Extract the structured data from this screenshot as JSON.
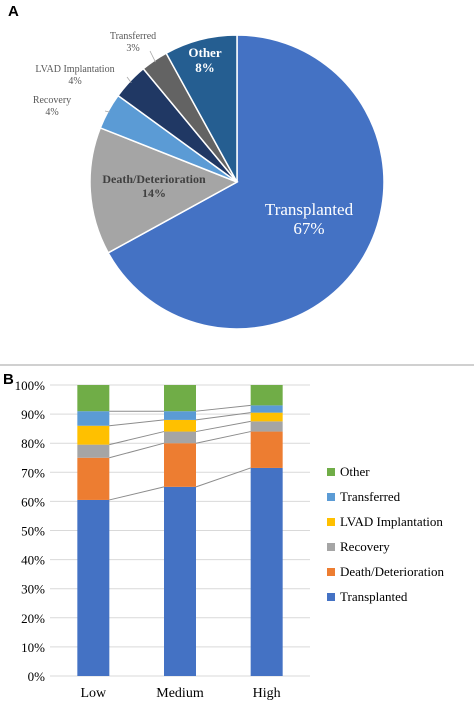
{
  "panel_a": {
    "letter": "A"
  },
  "panel_b": {
    "letter": "B"
  },
  "chart_data": [
    {
      "type": "pie",
      "slices": [
        {
          "label": "Transplanted",
          "value_label": "67%",
          "value": 67,
          "color": "#4472c4"
        },
        {
          "label": "Death/Deterioration",
          "value_label": "14%",
          "value": 14,
          "color": "#a5a5a5"
        },
        {
          "label": "Recovery",
          "value_label": "4%",
          "value": 4,
          "color": "#5b9bd5"
        },
        {
          "label": "LVAD Implantation",
          "value_label": "4%",
          "value": 4,
          "color": "#203864"
        },
        {
          "label": "Transferred",
          "value_label": "3%",
          "value": 3,
          "color": "#636363"
        },
        {
          "label": "Other",
          "value_label": "8%",
          "value": 8,
          "color": "#255e91"
        }
      ]
    },
    {
      "type": "bar",
      "stacked": true,
      "percent": true,
      "categories": [
        "Low",
        "Medium",
        "High"
      ],
      "ylim": [
        0,
        100
      ],
      "yticks": [
        "0%",
        "10%",
        "20%",
        "30%",
        "40%",
        "50%",
        "60%",
        "70%",
        "80%",
        "90%",
        "100%"
      ],
      "legend_position": "right",
      "series": [
        {
          "name": "Transplanted",
          "color": "#4472c4",
          "values": [
            60.5,
            65,
            71.5
          ]
        },
        {
          "name": "Death/Deterioration",
          "color": "#ed7d31",
          "values": [
            14.5,
            15,
            12.5
          ]
        },
        {
          "name": "Recovery",
          "color": "#a5a5a5",
          "values": [
            4.5,
            4,
            3.5
          ]
        },
        {
          "name": "LVAD Implantation",
          "color": "#ffc000",
          "values": [
            6.5,
            4,
            3
          ]
        },
        {
          "name": "Transferred",
          "color": "#5b9bd5",
          "values": [
            5,
            3,
            2.5
          ]
        },
        {
          "name": "Other",
          "color": "#70ad47",
          "values": [
            9,
            9,
            7
          ]
        }
      ]
    }
  ]
}
